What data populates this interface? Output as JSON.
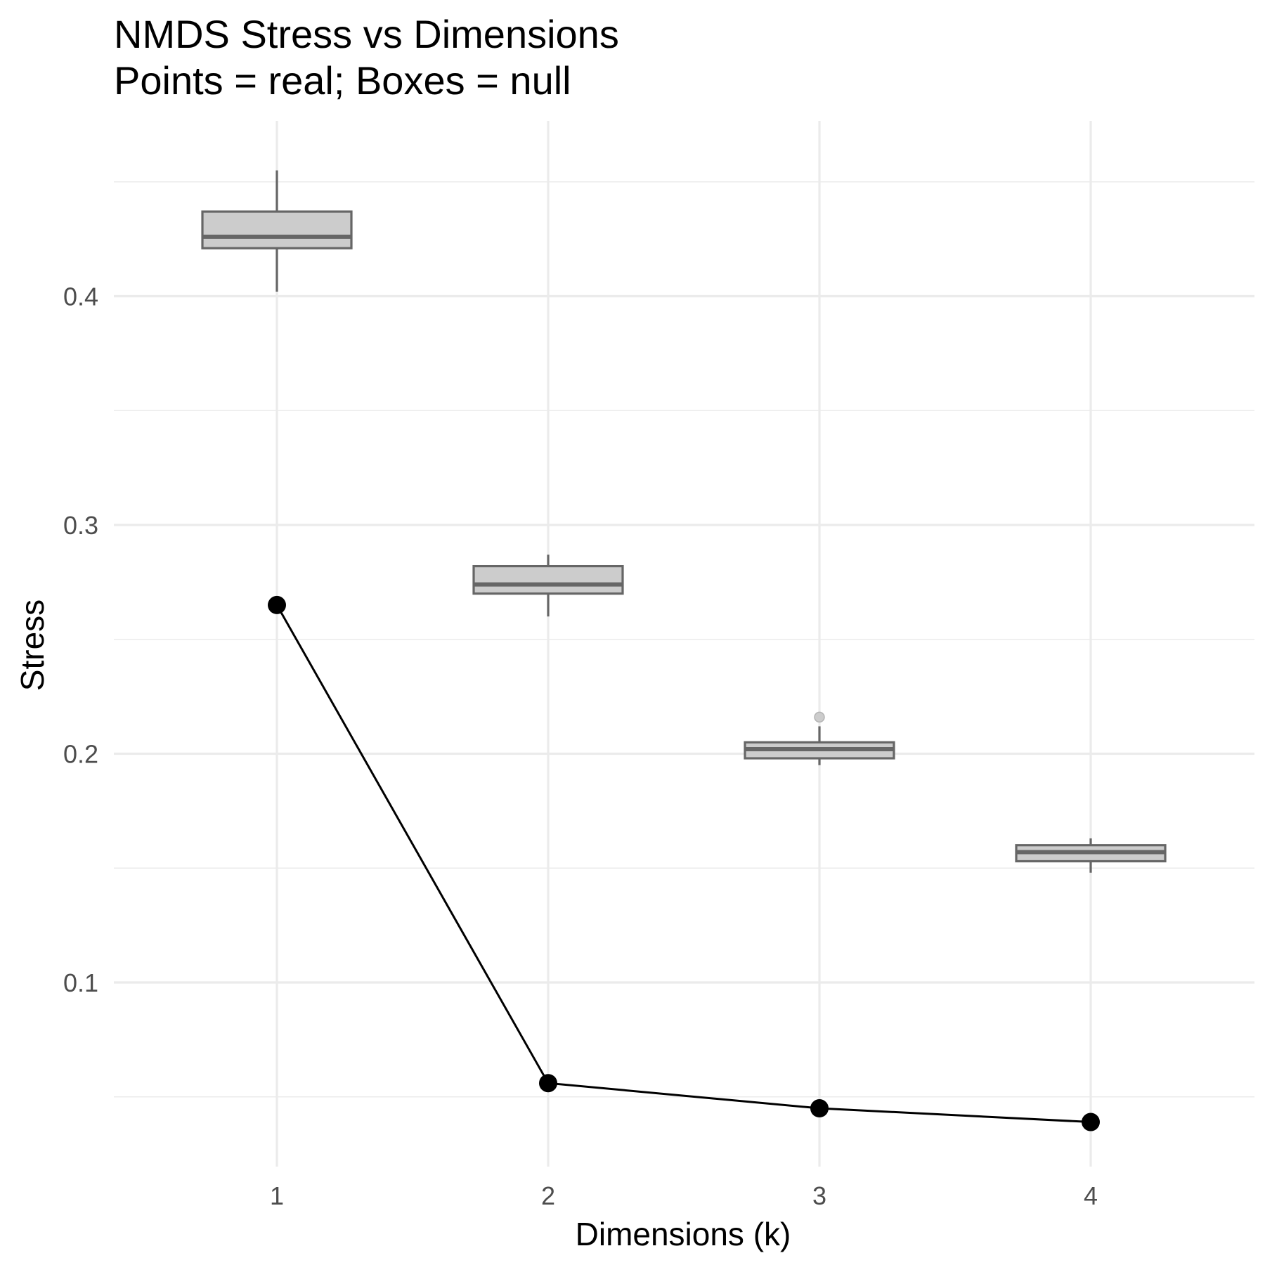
{
  "chart_data": {
    "type": "box+line",
    "title": "NMDS Stress vs Dimensions",
    "subtitle": "Points = real; Boxes = null",
    "xlabel": "Dimensions (k)",
    "ylabel": "Stress",
    "categories": [
      "1",
      "2",
      "3",
      "4"
    ],
    "ylim": [
      0.025,
      0.48
    ],
    "y_ticks": [
      0.1,
      0.2,
      0.3,
      0.4
    ],
    "y_tick_labels": [
      "0.1",
      "0.2",
      "0.3",
      "0.4"
    ],
    "grid": true,
    "series": [
      {
        "kind": "points+line",
        "values": [
          0.265,
          0.056,
          0.045,
          0.039
        ],
        "color": "#000000"
      },
      {
        "kind": "boxplot",
        "boxes": [
          {
            "category": "1",
            "whisker_low": 0.402,
            "q1": 0.421,
            "median": 0.426,
            "q3": 0.437,
            "whisker_high": 0.455,
            "outliers": []
          },
          {
            "category": "2",
            "whisker_low": 0.26,
            "q1": 0.27,
            "median": 0.274,
            "q3": 0.282,
            "whisker_high": 0.287,
            "outliers": []
          },
          {
            "category": "3",
            "whisker_low": 0.195,
            "q1": 0.198,
            "median": 0.202,
            "q3": 0.205,
            "whisker_high": 0.212,
            "outliers": [
              0.216
            ]
          },
          {
            "category": "4",
            "whisker_low": 0.148,
            "q1": 0.153,
            "median": 0.157,
            "q3": 0.16,
            "whisker_high": 0.163,
            "outliers": []
          }
        ],
        "fill": "#cccccc",
        "stroke": "#666666"
      }
    ]
  }
}
